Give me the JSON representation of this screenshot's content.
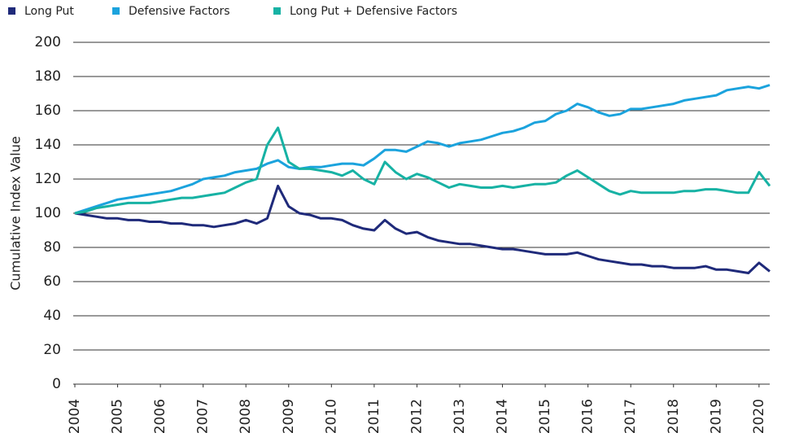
{
  "chart_data": {
    "type": "line",
    "y_label": "Cumulative Index Value",
    "x": [
      2004,
      2004.25,
      2004.5,
      2004.75,
      2005,
      2005.25,
      2005.5,
      2005.75,
      2006,
      2006.25,
      2006.5,
      2006.75,
      2007,
      2007.25,
      2007.5,
      2007.75,
      2008,
      2008.25,
      2008.5,
      2008.75,
      2009,
      2009.25,
      2009.5,
      2009.75,
      2010,
      2010.25,
      2010.5,
      2010.75,
      2011,
      2011.25,
      2011.5,
      2011.75,
      2012,
      2012.25,
      2012.5,
      2012.75,
      2013,
      2013.25,
      2013.5,
      2013.75,
      2014,
      2014.25,
      2014.5,
      2014.75,
      2015,
      2015.25,
      2015.5,
      2015.75,
      2016,
      2016.25,
      2016.5,
      2016.75,
      2017,
      2017.25,
      2017.5,
      2017.75,
      2018,
      2018.25,
      2018.5,
      2018.75,
      2019,
      2019.25,
      2019.5,
      2019.75,
      2020,
      2020.25
    ],
    "series": [
      {
        "name": "Long Put",
        "color": "#1f2a7a",
        "values": [
          100,
          99,
          98,
          97,
          97,
          96,
          96,
          95,
          95,
          94,
          94,
          93,
          93,
          92,
          93,
          94,
          96,
          94,
          97,
          116,
          104,
          100,
          99,
          97,
          97,
          96,
          93,
          91,
          90,
          96,
          91,
          88,
          89,
          86,
          84,
          83,
          82,
          82,
          81,
          80,
          79,
          79,
          78,
          77,
          76,
          76,
          76,
          77,
          75,
          73,
          72,
          71,
          70,
          70,
          69,
          69,
          68,
          68,
          68,
          69,
          67,
          67,
          66,
          65,
          71,
          66
        ]
      },
      {
        "name": "Defensive Factors",
        "color": "#1ba3dd",
        "values": [
          100,
          102,
          104,
          106,
          108,
          109,
          110,
          111,
          112,
          113,
          115,
          117,
          120,
          121,
          122,
          124,
          125,
          126,
          129,
          131,
          127,
          126,
          127,
          127,
          128,
          129,
          129,
          128,
          132,
          137,
          137,
          136,
          139,
          142,
          141,
          139,
          141,
          142,
          143,
          145,
          147,
          148,
          150,
          153,
          154,
          158,
          160,
          164,
          162,
          159,
          157,
          158,
          161,
          161,
          162,
          163,
          164,
          166,
          167,
          168,
          169,
          172,
          173,
          174,
          173,
          175
        ]
      },
      {
        "name": "Long Put + Defensive Factors",
        "color": "#17b2a4",
        "values": [
          100,
          101,
          103,
          104,
          105,
          106,
          106,
          106,
          107,
          108,
          109,
          109,
          110,
          111,
          112,
          115,
          118,
          120,
          140,
          150,
          130,
          126,
          126,
          125,
          124,
          122,
          125,
          120,
          117,
          130,
          124,
          120,
          123,
          121,
          118,
          115,
          117,
          116,
          115,
          115,
          116,
          115,
          116,
          117,
          117,
          118,
          122,
          125,
          121,
          117,
          113,
          111,
          113,
          112,
          112,
          112,
          112,
          113,
          113,
          114,
          114,
          113,
          112,
          112,
          124,
          116
        ]
      }
    ],
    "xlim": [
      2004,
      2020.25
    ],
    "xticks": [
      2004,
      2005,
      2006,
      2007,
      2008,
      2009,
      2010,
      2011,
      2012,
      2013,
      2014,
      2015,
      2016,
      2017,
      2018,
      2019,
      2020
    ],
    "ylim": [
      0,
      200
    ],
    "yticks": [
      0,
      20,
      40,
      60,
      80,
      100,
      120,
      140,
      160,
      180,
      200
    ],
    "grid": true
  }
}
